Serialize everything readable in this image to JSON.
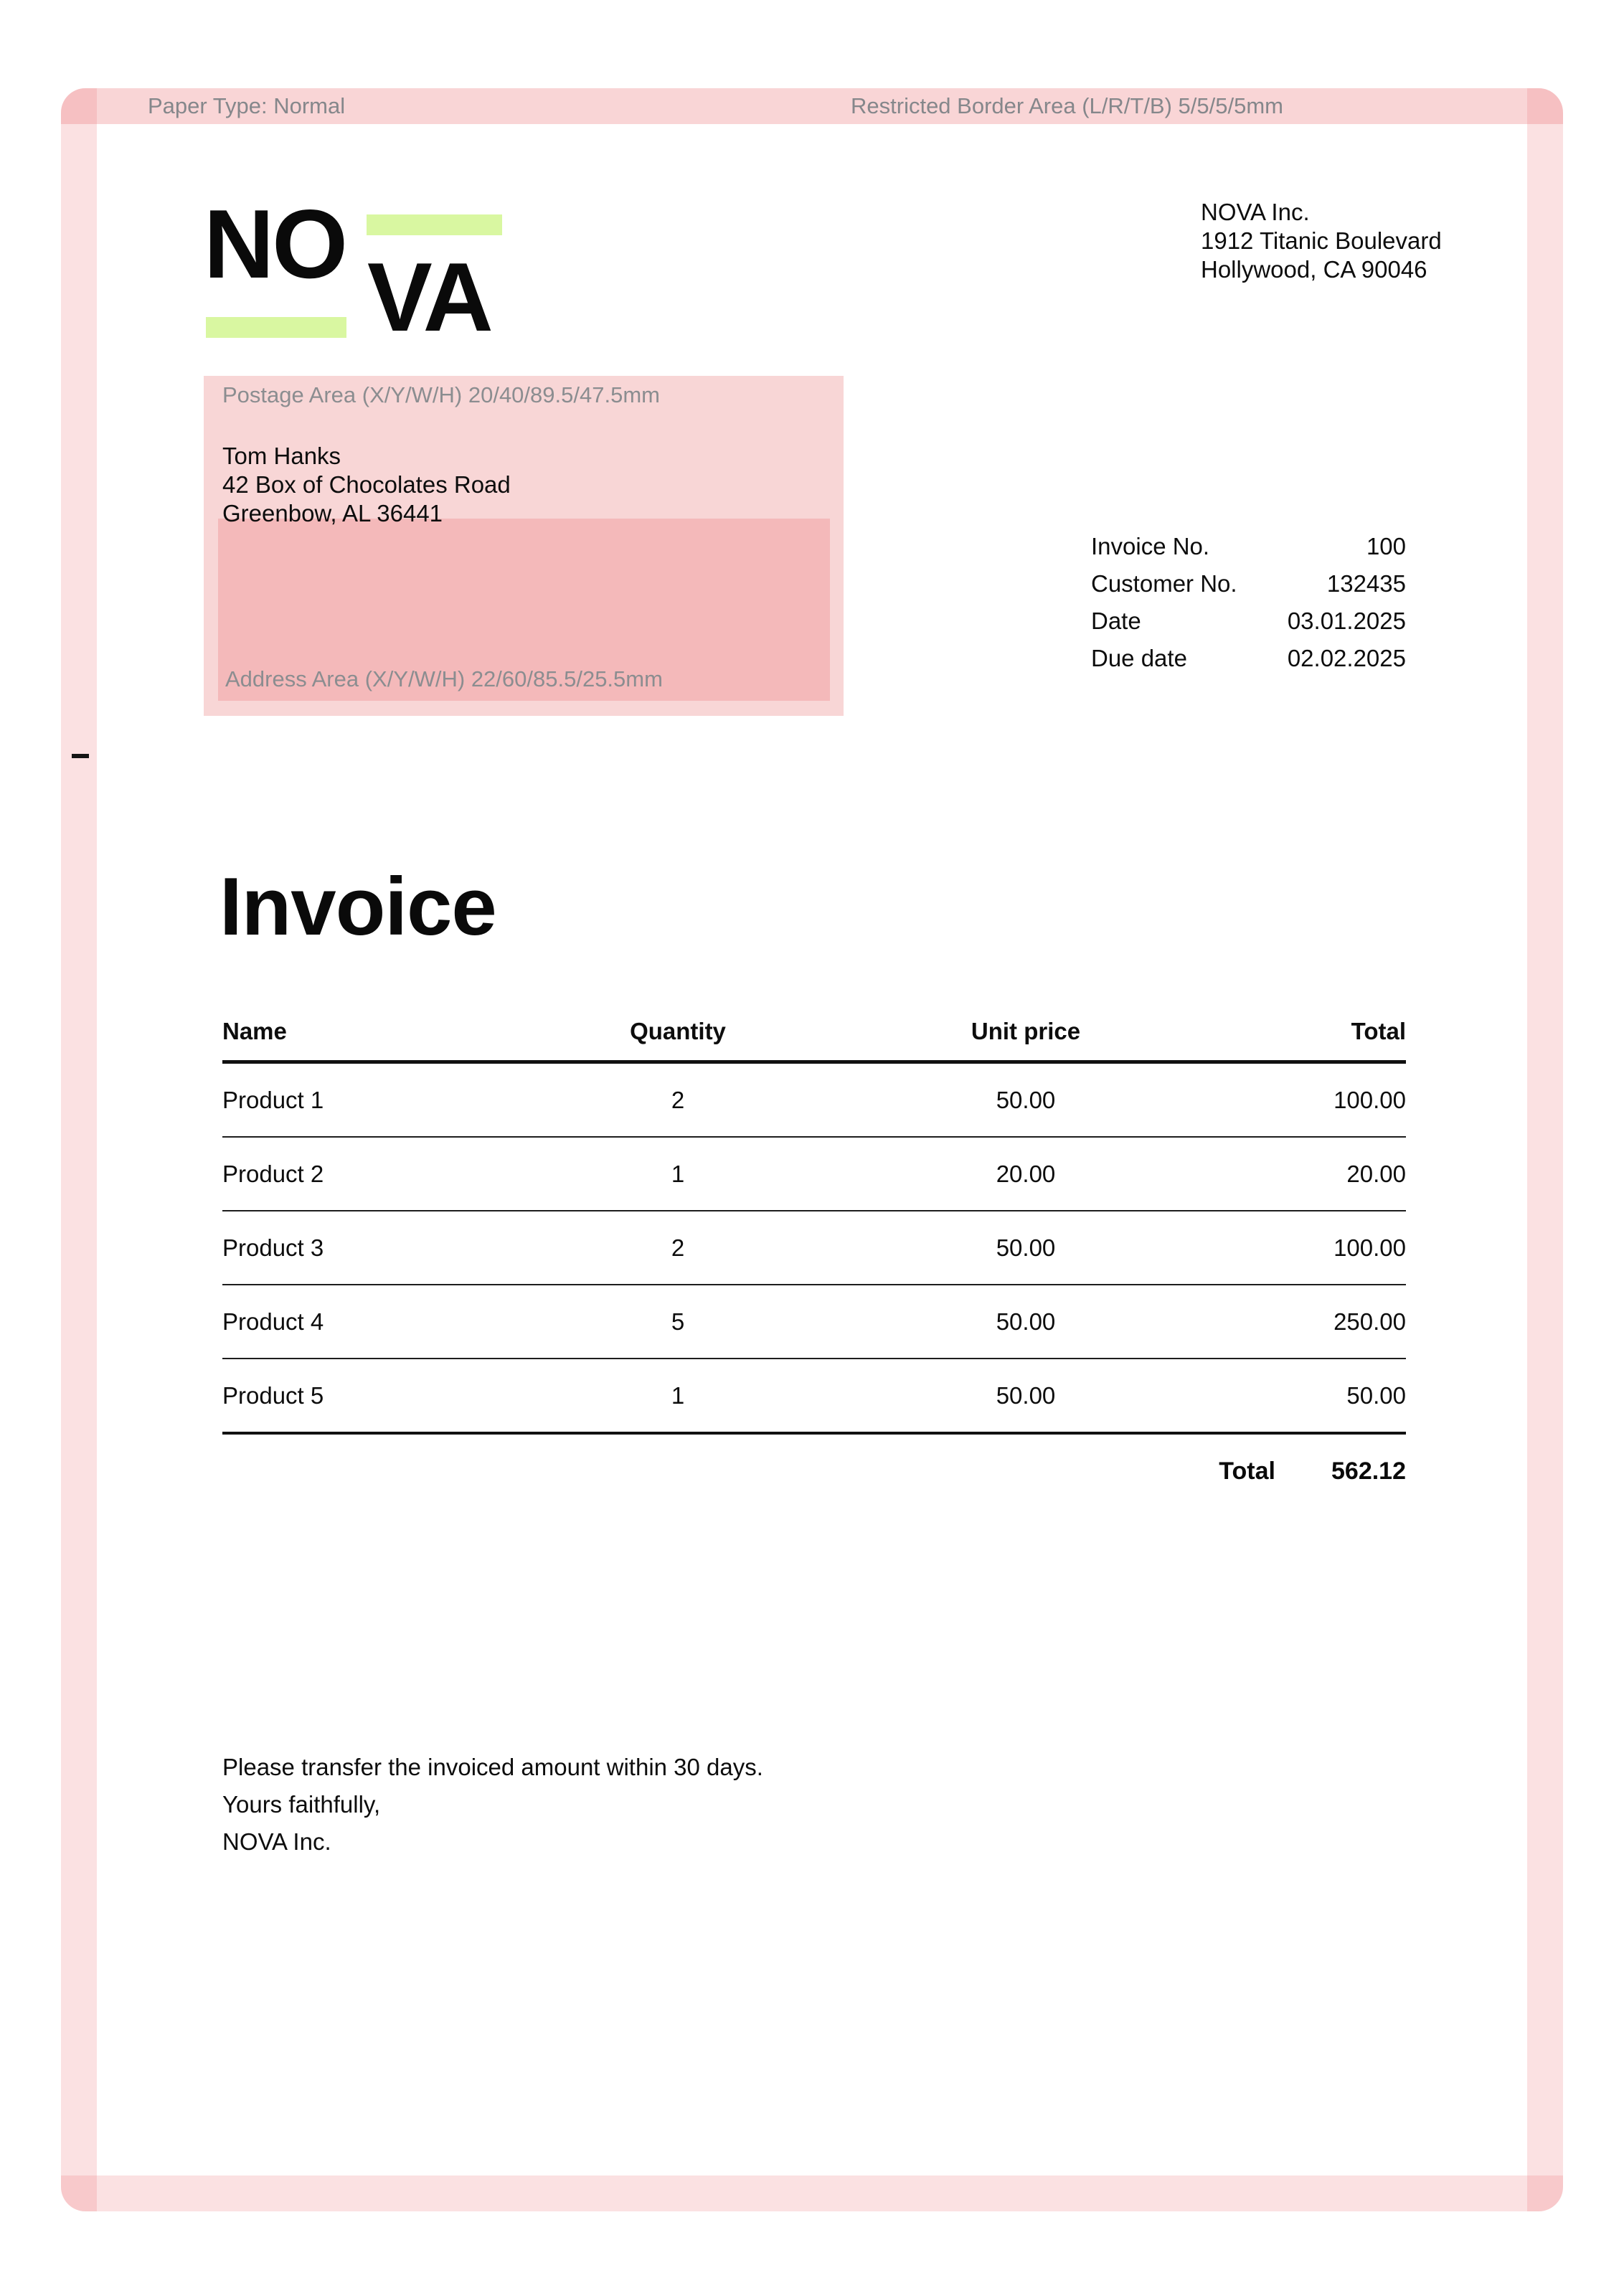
{
  "overlay": {
    "paper_type_label": "Paper Type: Normal",
    "restricted_border_label": "Restricted Border Area (L/R/T/B) 5/5/5/5mm",
    "postage_area_label": "Postage Area (X/Y/W/H) 20/40/89.5/47.5mm",
    "address_area_label": "Address Area (X/Y/W/H) 22/60/85.5/25.5mm",
    "colors": {
      "border_strip": "#fae2e2",
      "border_overlap": "#f4c6c8",
      "postage_box": "#f8d6d6",
      "address_box": "#f4b9ba",
      "label_gray": "#8b8d90"
    }
  },
  "logo": {
    "part1": "NO",
    "part2": "VA",
    "accent_color": "#d9f7a1"
  },
  "sender": {
    "line1": "NOVA Inc.",
    "line2": "1912 Titanic Boulevard",
    "line3": "Hollywood, CA 90046"
  },
  "recipient": {
    "line1": "Tom Hanks",
    "line2": "42 Box of Chocolates Road",
    "line3": "Greenbow, AL 36441"
  },
  "meta": {
    "rows": [
      {
        "label": "Invoice No.",
        "value": "100"
      },
      {
        "label": "Customer No.",
        "value": "132435"
      },
      {
        "label": "Date",
        "value": "03.01.2025"
      },
      {
        "label": "Due date",
        "value": "02.02.2025"
      }
    ]
  },
  "title": "Invoice",
  "table": {
    "headers": [
      "Name",
      "Quantity",
      "Unit price",
      "Total"
    ],
    "rows": [
      [
        "Product 1",
        "2",
        "50.00",
        "100.00"
      ],
      [
        "Product 2",
        "1",
        "20.00",
        "20.00"
      ],
      [
        "Product 3",
        "2",
        "50.00",
        "100.00"
      ],
      [
        "Product 4",
        "5",
        "50.00",
        "250.00"
      ],
      [
        "Product 5",
        "1",
        "50.00",
        "50.00"
      ]
    ],
    "total_label": "Total",
    "total_value": "562.12"
  },
  "footer": {
    "line1": "Please transfer the invoiced amount within 30 days.",
    "line2": "Yours faithfully,",
    "line3": "NOVA Inc."
  }
}
